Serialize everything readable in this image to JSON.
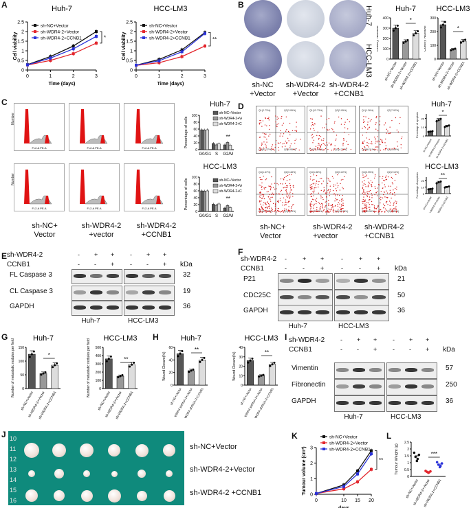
{
  "panels": {
    "A": "A",
    "B": "B",
    "C": "C",
    "D": "D",
    "E": "E",
    "F": "F",
    "G": "G",
    "H": "H",
    "I": "I",
    "J": "J",
    "K": "K",
    "L": "L"
  },
  "cells": {
    "huh7": "Huh-7",
    "lm3": "HCC-LM3"
  },
  "panelA": {
    "ylabel": "Cell viability",
    "xlabel": "Time (days)",
    "legend": [
      "sh-NC+Vector",
      "sh-WDR4-2+Vector",
      "sh-WDR4-2+CCNB1"
    ],
    "sig_huh7": "*",
    "sig_lm3": "**"
  },
  "panelB": {
    "row_huh7": "Huh-7",
    "row_lm3": "HCC-LM3",
    "col_labels": [
      "sh-NC",
      "+Vector",
      "sh-WDR4-2",
      "+Vector",
      "sh-WDR4-2",
      "+CCNB1"
    ],
    "ylabel": "Colony Number",
    "sig": "*",
    "xcats": [
      "sh-NC+Vector",
      "sh-WDR4-2+Vector",
      "sh-WDR4-2+CCNB1"
    ]
  },
  "panelC": {
    "hist_ylabel": "Number",
    "hist_xlabel": "FL2-A PE-A",
    "bar_ylabel": "Percentage of cells",
    "xcats": [
      "G0/G1",
      "S",
      "G2/M"
    ],
    "legend": [
      "sh-NC+Vector",
      "sh-WDR4-2+Vector",
      "sh-WDR4-2+CCNB1"
    ],
    "sig": "**",
    "col_labels": [
      "sh-NC+",
      "Vector",
      "sh-WDR4-2",
      "+vector",
      "sh-WDR4-2",
      "+CCNB1"
    ]
  },
  "panelD": {
    "xlabel": "FITC-A",
    "ylabel": "PE-A",
    "bar_ylabel": "Percentage of apoptosis",
    "quad_huh7": [
      [
        "Q1(2.73%)",
        "Q2(3.95%)",
        "Q4(92.37%)",
        "Q3(0.95%)"
      ],
      [
        "Q1(12.73%)",
        "Q2(3.95%)",
        "Q4(76.59%)",
        "Q3(4.73%)"
      ],
      [
        "Q1(1.26%)",
        "Q2(7.92%)",
        "Q4(86.11%)",
        "Q3(4.69%)"
      ]
    ],
    "quad_lm3": [
      [
        "Q4(1.67%)",
        "Q2(3.48%)",
        "Q1(81.73%)",
        "Q3(3.13%)"
      ],
      [
        "Q4(1.88%)",
        "Q2(3.22%)",
        "Q1(70.83%)",
        "Q3(10.23%)"
      ],
      [
        "Q4(0.95%)",
        "Q2(2.10%)",
        "Q1(89.50%)",
        "Q3(2.80%)"
      ]
    ],
    "sig": "**",
    "col_labels": [
      "sh-NC+",
      "Vector",
      "sh-WDR4-2",
      "+vector",
      "sh-WDR4-2",
      "+CCNB1"
    ]
  },
  "panelE": {
    "row1": "sh-WDR4-2",
    "row2": "CCNB1",
    "signs1": [
      "-",
      "+",
      "+",
      "-",
      "+",
      "+"
    ],
    "signs2": [
      "-",
      "-",
      "+",
      "-",
      "-",
      "+"
    ],
    "kda": "kDa",
    "proteins": [
      "FL Caspase 3",
      "CL Caspase 3",
      "GAPDH"
    ],
    "sizes": [
      "32",
      "19",
      "36"
    ]
  },
  "panelF": {
    "row1": "sh-WDR4-2",
    "row2": "CCNB1",
    "signs1": [
      "-",
      "+",
      "+",
      "-",
      "+",
      "+"
    ],
    "signs2": [
      "-",
      "-",
      "+",
      "-",
      "-",
      "+"
    ],
    "kda": "kDa",
    "proteins": [
      "P21",
      "CDC25C",
      "GAPDH"
    ],
    "sizes": [
      "21",
      "50",
      "36"
    ]
  },
  "panelG": {
    "ylabel": "Number of metastatic nodules per field",
    "sig_huh7": "*",
    "sig_lm3": "**",
    "xcats": [
      "sh-NC+Vector",
      "sh-WDR4-2+Vector",
      "sh-WDR4-2+CCNB1"
    ]
  },
  "panelH": {
    "ylabel": "Wound Closure(%)",
    "sig": "**",
    "xcats": [
      "sh-NC+Vector",
      "WDR4 shRNA-2+Vector",
      "WDR4 shRNA-2+CCNB1"
    ]
  },
  "panelI": {
    "row1": "sh-WDR4-2",
    "row2": "CCNB1",
    "signs1": [
      "-",
      "+",
      "+",
      "-",
      "+",
      "+"
    ],
    "signs2": [
      "-",
      "-",
      "+",
      "-",
      "-",
      "+"
    ],
    "kda": "kDa",
    "proteins": [
      "Vimentin",
      "Fibronectin",
      "GAPDH"
    ],
    "sizes": [
      "57",
      "250",
      "36"
    ]
  },
  "panelJ": {
    "ruler": [
      "10",
      "11",
      "12",
      "13",
      "14",
      "15",
      "16"
    ],
    "rows": [
      "sh-NC+Vector",
      "sh-WDR4-2+Vector",
      "sh-WDR4-2 +CCNB1"
    ]
  },
  "panelK": {
    "ylabel": "Tumour volume (cm³)",
    "xlabel": "days",
    "sig": "**",
    "legend": [
      "sh-NC+Vector",
      "sh-WDR4-2+Vector",
      "sh-WDR4-2+CCNB1"
    ]
  },
  "panelL": {
    "ylabel": "Tumour Weight (g)",
    "sig": "***",
    "xcats": [
      "sh-NC+Vector",
      "sh-WDR4-2+Vector",
      "sh-WDR4-2+CCNB1"
    ]
  },
  "colors": {
    "nc": "#111111",
    "wdr4": "#e3262d",
    "ccnb1": "#2b33d9",
    "bar_dark": "#555555",
    "bar_mid": "#999999",
    "bar_light": "#dddddd"
  },
  "chart_data": [
    {
      "id": "A-huh7",
      "type": "line",
      "title": "Huh-7",
      "xlabel": "Time (days)",
      "ylabel": "Cell viability",
      "x": [
        0,
        1,
        2,
        3
      ],
      "ylim": [
        0,
        2.5
      ],
      "series": [
        {
          "name": "sh-NC+Vector",
          "values": [
            0.28,
            0.7,
            1.25,
            2.0
          ]
        },
        {
          "name": "sh-WDR4-2+Vector",
          "values": [
            0.26,
            0.5,
            0.85,
            1.4
          ]
        },
        {
          "name": "sh-WDR4-2+CCNB1",
          "values": [
            0.27,
            0.62,
            1.1,
            1.75
          ]
        }
      ]
    },
    {
      "id": "A-lm3",
      "type": "line",
      "title": "HCC-LM3",
      "xlabel": "Time (days)",
      "ylabel": "Cell viability",
      "x": [
        0,
        1,
        2,
        3
      ],
      "ylim": [
        0,
        2.5
      ],
      "series": [
        {
          "name": "sh-NC+Vector",
          "values": [
            0.25,
            0.55,
            1.05,
            1.95
          ]
        },
        {
          "name": "sh-WDR4-2+Vector",
          "values": [
            0.24,
            0.38,
            0.7,
            1.25
          ]
        },
        {
          "name": "sh-WDR4-2+CCNB1",
          "values": [
            0.25,
            0.48,
            0.95,
            1.9
          ]
        }
      ]
    },
    {
      "id": "B-huh7",
      "type": "bar",
      "title": "Huh-7",
      "ylabel": "Colony Number",
      "categories": [
        "sh-NC+Vector",
        "sh-WDR4-2+Vector",
        "sh-WDR4-2+CCNB1"
      ],
      "values": [
        300,
        170,
        250
      ],
      "ylim": [
        0,
        400
      ]
    },
    {
      "id": "B-lm3",
      "type": "bar",
      "title": "HCC-LM3",
      "ylabel": "Colony Number",
      "categories": [
        "sh-NC+Vector",
        "sh-WDR4-2+Vector",
        "sh-WDR4-2+CCNB1"
      ],
      "values": [
        250,
        70,
        130
      ],
      "ylim": [
        0,
        300
      ]
    },
    {
      "id": "C-huh7",
      "type": "bar",
      "title": "Huh-7",
      "ylabel": "Percentage of cells",
      "categories": [
        "G0/G1",
        "S",
        "G2/M"
      ],
      "series": [
        {
          "name": "sh-NC+Vector",
          "values": [
            58,
            18,
            14
          ]
        },
        {
          "name": "sh-WDR4-2+Vector",
          "values": [
            57,
            14,
            21
          ]
        },
        {
          "name": "sh-WDR4-2+CCNB1",
          "values": [
            58,
            17,
            13
          ]
        }
      ],
      "ylim": [
        0,
        100
      ]
    },
    {
      "id": "C-lm3",
      "type": "bar",
      "title": "HCC-LM3",
      "ylabel": "Percentage of cells",
      "categories": [
        "G0/G1",
        "S",
        "G2/M"
      ],
      "series": [
        {
          "name": "sh-NC+Vector",
          "values": [
            60,
            21,
            10
          ]
        },
        {
          "name": "sh-WDR4-2+Vector",
          "values": [
            59,
            18,
            17
          ]
        },
        {
          "name": "sh-WDR4-2+CCNB1",
          "values": [
            60,
            22,
            11
          ]
        }
      ],
      "ylim": [
        0,
        100
      ]
    },
    {
      "id": "D-huh7",
      "type": "bar",
      "ylabel": "Percentage of apoptosis",
      "categories": [
        "sh-NC+Vector",
        "sh-WDR4-2+Vector",
        "sh-WDR4-2+CCNB1"
      ],
      "values": [
        5,
        18,
        11
      ],
      "ylim": [
        0,
        25
      ]
    },
    {
      "id": "D-lm3",
      "type": "bar",
      "ylabel": "Percentage of apoptosis",
      "categories": [
        "sh-NC+Vector",
        "sh-WDR4-2+Vector",
        "sh-WDR4-2+CCNB1"
      ],
      "values": [
        7,
        17,
        10
      ],
      "ylim": [
        0,
        25
      ]
    },
    {
      "id": "G-huh7",
      "type": "bar",
      "title": "Huh-7",
      "ylabel": "Number of metastatic nodules per field",
      "categories": [
        "sh-NC+Vector",
        "sh-WDR4-2+Vector",
        "sh-WDR4-2+CCNB1"
      ],
      "values": [
        125,
        55,
        85
      ],
      "ylim": [
        0,
        150
      ]
    },
    {
      "id": "G-lm3",
      "type": "bar",
      "title": "HCC-LM3",
      "ylabel": "Number of metastatic nodules per field",
      "categories": [
        "sh-NC+Vector",
        "sh-WDR4-2+Vector",
        "sh-WDR4-2+CCNB1"
      ],
      "values": [
        360,
        150,
        290
      ],
      "ylim": [
        0,
        500
      ]
    },
    {
      "id": "H-huh7",
      "type": "bar",
      "title": "Huh-7",
      "ylabel": "Wound Closure(%)",
      "categories": [
        "sh-NC+Vector",
        "WDR4 shRNA-2+Vector",
        "WDR4 shRNA-2+CCNB1"
      ],
      "values": [
        50,
        23,
        40
      ],
      "ylim": [
        0,
        60
      ]
    },
    {
      "id": "H-lm3",
      "type": "bar",
      "title": "HCC-LM3",
      "ylabel": "Wound Closure(%)",
      "categories": [
        "sh-NC+Vector",
        "WDR4 shRNA-2+Vector",
        "WDR4 shRNA-2+CCNB1"
      ],
      "values": [
        26,
        10,
        22
      ],
      "ylim": [
        0,
        40
      ]
    },
    {
      "id": "K",
      "type": "line",
      "xlabel": "days",
      "ylabel": "Tumour volume (cm³)",
      "x": [
        0,
        10,
        15,
        20
      ],
      "ylim": [
        0,
        3
      ],
      "series": [
        {
          "name": "sh-NC+Vector",
          "values": [
            0.05,
            0.6,
            1.5,
            2.8
          ]
        },
        {
          "name": "sh-WDR4-2+Vector",
          "values": [
            0.05,
            0.35,
            0.8,
            1.6
          ]
        },
        {
          "name": "sh-WDR4-2+CCNB1",
          "values": [
            0.05,
            0.5,
            1.3,
            2.6
          ]
        }
      ]
    },
    {
      "id": "L",
      "type": "scatter",
      "ylabel": "Tumour Weight (g)",
      "categories": [
        "sh-NC+Vector",
        "sh-WDR4-2+Vector",
        "sh-WDR4-2+CCNB1"
      ],
      "values": [
        1.5,
        0.35,
        0.9
      ],
      "ylim": [
        0,
        2.5
      ]
    }
  ]
}
